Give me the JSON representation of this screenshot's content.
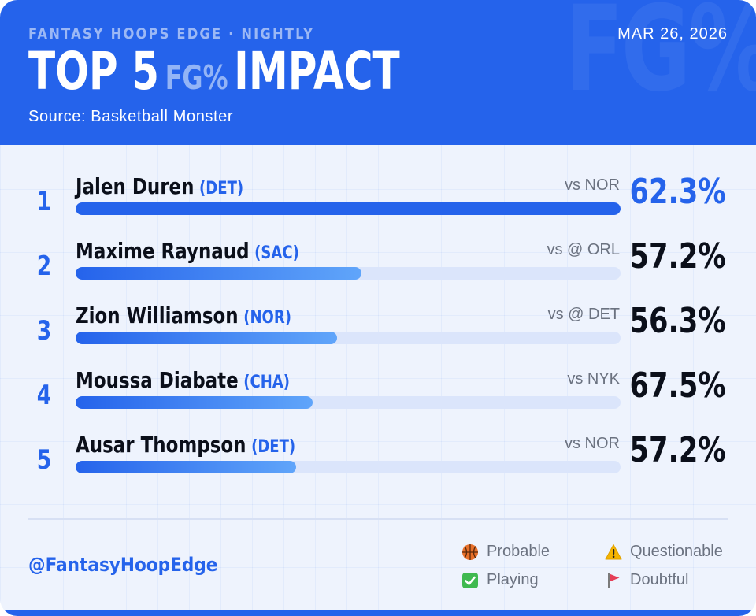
{
  "header": {
    "kicker": "FANTASY HOOPS EDGE · NIGHTLY",
    "date": "MAR 26, 2026",
    "title_prefix": "TOP 5",
    "title_accent": "FG%",
    "title_suffix": "IMPACT",
    "watermark": "FG%",
    "source": "Source: Basketball Monster"
  },
  "rows": [
    {
      "rank": "1",
      "name": "Jalen Duren",
      "team": "(DET)",
      "opponent": "vs NOR",
      "pct": "62.3%",
      "bar_fraction": 1.0
    },
    {
      "rank": "2",
      "name": "Maxime Raynaud",
      "team": "(SAC)",
      "opponent": "vs @ ORL",
      "pct": "57.2%",
      "bar_fraction": 0.525
    },
    {
      "rank": "3",
      "name": "Zion Williamson",
      "team": "(NOR)",
      "opponent": "vs @ DET",
      "pct": "56.3%",
      "bar_fraction": 0.48
    },
    {
      "rank": "4",
      "name": "Moussa Diabate",
      "team": "(CHA)",
      "opponent": "vs NYK",
      "pct": "67.5%",
      "bar_fraction": 0.435
    },
    {
      "rank": "5",
      "name": "Ausar Thompson",
      "team": "(DET)",
      "opponent": "vs NOR",
      "pct": "57.2%",
      "bar_fraction": 0.405
    }
  ],
  "footer": {
    "handle": "@FantasyHoopEdge",
    "legend": {
      "probable": "Probable",
      "questionable": "Questionable",
      "playing": "Playing",
      "doubtful": "Doubtful"
    },
    "legend_icons": {
      "probable": "basketball-icon",
      "questionable": "warning-icon",
      "playing": "check-icon",
      "doubtful": "flag-icon"
    }
  },
  "colors": {
    "accent": "#2563eb",
    "background": "#eef3fd",
    "track": "#dbe5fb",
    "text": "#0b0f1a",
    "muted": "#6b7280"
  }
}
